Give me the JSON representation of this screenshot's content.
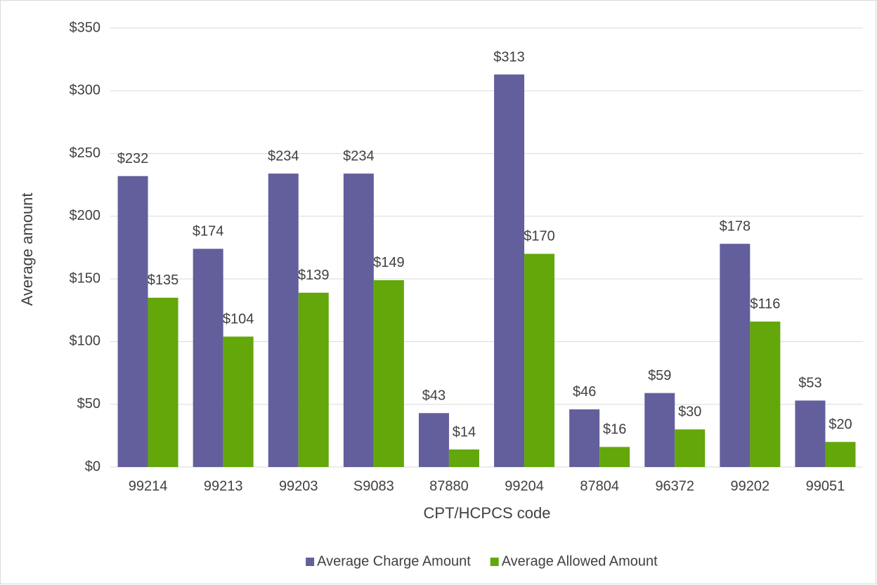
{
  "chart_data": {
    "type": "bar",
    "x_label": "CPT/HCPCS code",
    "y_label": "Average amount",
    "categories": [
      "99214",
      "99213",
      "99203",
      "S9083",
      "87880",
      "99204",
      "87804",
      "96372",
      "99202",
      "99051"
    ],
    "series": [
      {
        "name": "Average Charge Amount",
        "color": "#635f9c",
        "values": [
          232,
          174,
          234,
          234,
          43,
          313,
          46,
          59,
          178,
          53
        ],
        "value_labels": [
          "$232",
          "$174",
          "$234",
          "$234",
          "$43",
          "$313",
          "$46",
          "$59",
          "$178",
          "$53"
        ]
      },
      {
        "name": "Average Allowed Amount",
        "color": "#63a70a",
        "values": [
          135,
          104,
          139,
          149,
          14,
          170,
          16,
          30,
          116,
          20
        ],
        "value_labels": [
          "$135",
          "$104",
          "$139",
          "$149",
          "$14",
          "$170",
          "$16",
          "$30",
          "$116",
          "$20"
        ]
      }
    ],
    "ylim": [
      0,
      350
    ],
    "yticks": [
      {
        "value": 0,
        "label": "$0"
      },
      {
        "value": 50,
        "label": "$50"
      },
      {
        "value": 100,
        "label": "$100"
      },
      {
        "value": 150,
        "label": "$150"
      },
      {
        "value": 200,
        "label": "$200"
      },
      {
        "value": 250,
        "label": "$250"
      },
      {
        "value": 300,
        "label": "$300"
      },
      {
        "value": 350,
        "label": "$350"
      }
    ],
    "grid": true,
    "legend": "bottom"
  }
}
